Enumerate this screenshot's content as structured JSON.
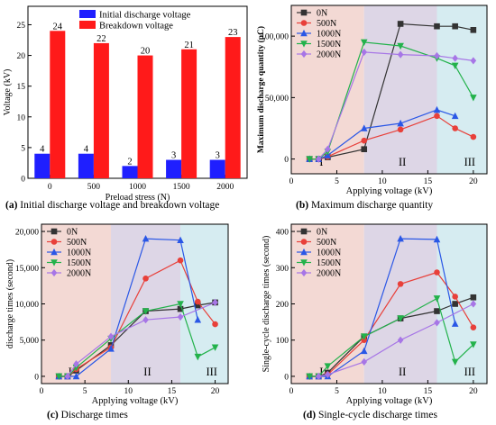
{
  "colors": {
    "blue": "#1f1fff",
    "red": "#ff1a1a",
    "zone1": "#f3d9d4",
    "zone2": "#ddd6e6",
    "zone3": "#d6ecf1",
    "s0": "#333333",
    "s500": "#e8403a",
    "s1000": "#2a57e6",
    "s1500": "#23b24b",
    "s2000": "#a776e6"
  },
  "captions": {
    "a": {
      "letter": "(a)",
      "text": " Initial discharge voltage and breakdown voltage"
    },
    "b": {
      "letter": "(b)",
      "text": " Maximum discharge quantity"
    },
    "c": {
      "letter": "(c)",
      "text": " Discharge times"
    },
    "d": {
      "letter": "(d)",
      "text": " Single-cycle discharge times"
    }
  },
  "zone_labels": [
    "I",
    "II",
    "III"
  ],
  "chart_data": [
    {
      "id": "a",
      "type": "bar",
      "categories": [
        "0",
        "500",
        "1000",
        "1500",
        "2000"
      ],
      "series": [
        {
          "name": "Initial discharge voltage",
          "values": [
            4,
            4,
            2,
            3,
            3
          ]
        },
        {
          "name": "Breakdown voltage",
          "values": [
            24,
            22,
            20,
            21,
            23
          ]
        }
      ],
      "xlabel": "Preload stress (N)",
      "ylabel": "Voltage (kV)",
      "ylim": [
        0,
        28
      ],
      "yticks": [
        "0",
        "5",
        "10",
        "15",
        "20",
        "25"
      ],
      "legend": "top-center",
      "grid": false
    },
    {
      "id": "b",
      "type": "line",
      "xlabel": "Applying voltage (kV)",
      "ylabel": "Maximum discharge quantity (pC)",
      "xlim": [
        0,
        21.5
      ],
      "ylim": [
        -12000,
        125000
      ],
      "xticks": [
        "0",
        "5",
        "10",
        "15",
        "20"
      ],
      "yticks": [
        "0",
        "50,000",
        "100,000"
      ],
      "zones": [
        0,
        8,
        16,
        21.5
      ],
      "legend": "top-left",
      "series": [
        {
          "name": "0N",
          "marker": "square",
          "x": [
            2,
            3,
            4,
            8,
            12,
            16,
            18,
            20
          ],
          "y": [
            0,
            0,
            1500,
            8000,
            110000,
            108000,
            108000,
            105000
          ]
        },
        {
          "name": "500N",
          "marker": "circle",
          "x": [
            2,
            3,
            4,
            8,
            12,
            16,
            18,
            20
          ],
          "y": [
            0,
            0,
            2000,
            15000,
            24000,
            35000,
            25000,
            18000
          ]
        },
        {
          "name": "1000N",
          "marker": "triangle-up",
          "x": [
            2,
            3,
            4,
            8,
            12,
            16,
            18
          ],
          "y": [
            0,
            0,
            3000,
            25000,
            29000,
            40000,
            35000
          ]
        },
        {
          "name": "1500N",
          "marker": "triangle-down",
          "x": [
            2,
            3,
            4,
            8,
            12,
            16,
            18,
            20
          ],
          "y": [
            0,
            0,
            6000,
            95000,
            92000,
            82000,
            76000,
            50000
          ]
        },
        {
          "name": "2000N",
          "marker": "diamond",
          "x": [
            3,
            4,
            8,
            12,
            16,
            18,
            20
          ],
          "y": [
            0,
            8000,
            87000,
            85000,
            84000,
            82000,
            80000
          ]
        }
      ]
    },
    {
      "id": "c",
      "type": "line",
      "xlabel": "Applying voltage (kV)",
      "ylabel": "discharge times (second)",
      "xlim": [
        0,
        21.5
      ],
      "ylim": [
        -1000,
        21000
      ],
      "xticks": [
        "0",
        "5",
        "10",
        "15",
        "20"
      ],
      "yticks": [
        "0",
        "5,000",
        "10,000",
        "15,000",
        "20,000"
      ],
      "zones": [
        0,
        8,
        16,
        21.5
      ],
      "legend": "top-left",
      "series": [
        {
          "name": "0N",
          "marker": "square",
          "x": [
            2,
            3,
            4,
            8,
            12,
            16,
            18,
            20
          ],
          "y": [
            0,
            0,
            800,
            4300,
            9000,
            9300,
            9800,
            10200
          ]
        },
        {
          "name": "500N",
          "marker": "circle",
          "x": [
            2,
            3,
            4,
            8,
            12,
            16,
            18,
            20
          ],
          "y": [
            0,
            0,
            1000,
            4000,
            13500,
            16000,
            10300,
            7200
          ]
        },
        {
          "name": "1000N",
          "marker": "triangle-up",
          "x": [
            2,
            3,
            4,
            8,
            12,
            16,
            18
          ],
          "y": [
            0,
            0,
            0,
            3800,
            19000,
            18800,
            7800
          ]
        },
        {
          "name": "1500N",
          "marker": "triangle-down",
          "x": [
            2,
            3,
            4,
            8,
            12,
            16,
            18,
            20
          ],
          "y": [
            0,
            0,
            1200,
            5200,
            9000,
            10000,
            2700,
            4000
          ]
        },
        {
          "name": "2000N",
          "marker": "diamond",
          "x": [
            3,
            4,
            8,
            12,
            16,
            20
          ],
          "y": [
            0,
            1700,
            5500,
            7800,
            8200,
            10200
          ]
        }
      ]
    },
    {
      "id": "d",
      "type": "line",
      "xlabel": "Applying voltage (kV)",
      "ylabel": "Single-cycle discharge times (second)",
      "xlim": [
        0,
        21.5
      ],
      "ylim": [
        -20,
        420
      ],
      "xticks": [
        "0",
        "5",
        "10",
        "15",
        "20"
      ],
      "yticks": [
        "0",
        "100",
        "200",
        "300",
        "400"
      ],
      "zones": [
        0,
        8,
        16,
        21.5
      ],
      "legend": "top-left",
      "series": [
        {
          "name": "0N",
          "marker": "square",
          "x": [
            2,
            3,
            4,
            8,
            12,
            16,
            18,
            20
          ],
          "y": [
            0,
            0,
            10,
            110,
            160,
            180,
            200,
            218
          ]
        },
        {
          "name": "500N",
          "marker": "circle",
          "x": [
            2,
            3,
            4,
            8,
            12,
            16,
            18,
            20
          ],
          "y": [
            0,
            0,
            5,
            100,
            255,
            287,
            220,
            135
          ]
        },
        {
          "name": "1000N",
          "marker": "triangle-up",
          "x": [
            2,
            3,
            4,
            8,
            12,
            16,
            18
          ],
          "y": [
            0,
            0,
            0,
            70,
            380,
            378,
            145
          ]
        },
        {
          "name": "1500N",
          "marker": "triangle-down",
          "x": [
            2,
            3,
            4,
            8,
            12,
            16,
            18,
            20
          ],
          "y": [
            0,
            0,
            28,
            110,
            160,
            215,
            40,
            88
          ]
        },
        {
          "name": "2000N",
          "marker": "diamond",
          "x": [
            3,
            4,
            8,
            12,
            16,
            20
          ],
          "y": [
            0,
            5,
            40,
            100,
            148,
            200
          ]
        }
      ]
    }
  ]
}
